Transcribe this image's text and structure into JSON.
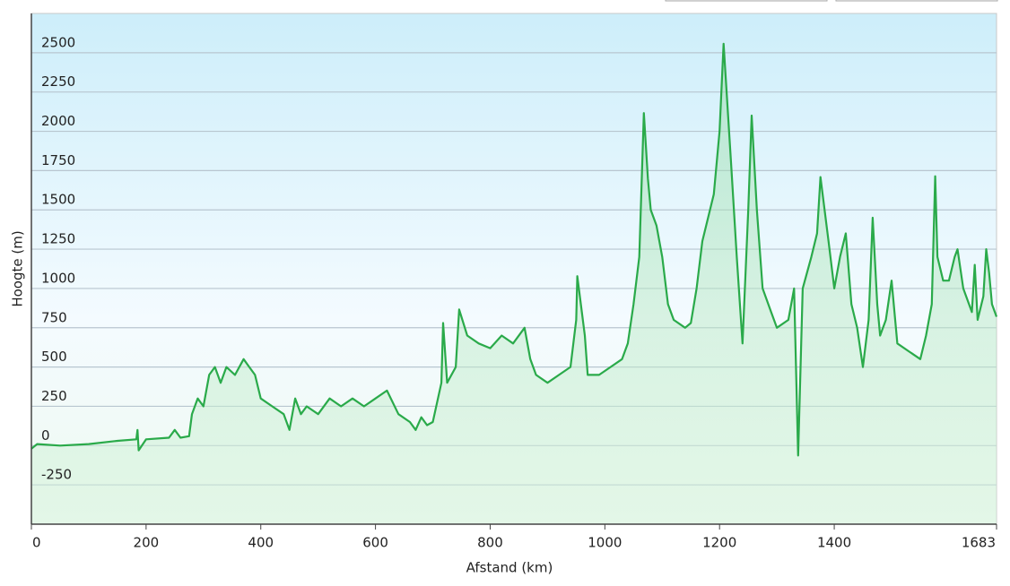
{
  "chart_data": {
    "type": "line",
    "x_label": "Afstand  (km)",
    "y_label": "Hoogte (m)",
    "color": "#2aaa4a",
    "grid": true,
    "xlim": [
      0,
      1683
    ],
    "xticks": [
      0,
      200,
      400,
      600,
      800,
      1000,
      1200,
      1400,
      1683
    ],
    "ylim": [
      -500,
      2750
    ],
    "yticks": [
      -250,
      0,
      250,
      500,
      750,
      1000,
      1250,
      1500,
      1750,
      2000,
      2250,
      2500
    ],
    "x": [
      0,
      10,
      50,
      100,
      150,
      183,
      185,
      187,
      200,
      240,
      250,
      260,
      275,
      280,
      290,
      300,
      310,
      320,
      330,
      340,
      355,
      370,
      380,
      390,
      400,
      420,
      440,
      450,
      460,
      470,
      480,
      500,
      520,
      540,
      560,
      580,
      600,
      620,
      640,
      660,
      670,
      680,
      690,
      700,
      715,
      718,
      725,
      740,
      746,
      760,
      780,
      800,
      820,
      840,
      860,
      870,
      880,
      900,
      920,
      940,
      950,
      952,
      965,
      970,
      990,
      1010,
      1030,
      1040,
      1050,
      1060,
      1068,
      1075,
      1080,
      1090,
      1100,
      1110,
      1120,
      1140,
      1150,
      1160,
      1170,
      1190,
      1200,
      1207,
      1220,
      1230,
      1240,
      1250,
      1256,
      1265,
      1275,
      1290,
      1300,
      1320,
      1330,
      1337,
      1345,
      1360,
      1370,
      1376,
      1390,
      1400,
      1410,
      1420,
      1430,
      1440,
      1450,
      1460,
      1467,
      1475,
      1480,
      1490,
      1500,
      1510,
      1530,
      1550,
      1560,
      1570,
      1576,
      1580,
      1590,
      1600,
      1610,
      1615,
      1625,
      1640,
      1645,
      1650,
      1660,
      1665,
      1670,
      1675,
      1683
    ],
    "values": [
      -20,
      10,
      0,
      10,
      30,
      40,
      100,
      -30,
      40,
      50,
      100,
      50,
      60,
      200,
      300,
      250,
      450,
      500,
      400,
      500,
      450,
      550,
      500,
      450,
      300,
      250,
      200,
      100,
      300,
      200,
      250,
      200,
      300,
      250,
      300,
      250,
      300,
      350,
      200,
      150,
      100,
      180,
      130,
      150,
      400,
      780,
      400,
      500,
      866,
      700,
      650,
      620,
      700,
      650,
      750,
      550,
      450,
      400,
      450,
      500,
      800,
      1078,
      700,
      450,
      450,
      500,
      550,
      650,
      900,
      1200,
      2116,
      1700,
      1500,
      1400,
      1200,
      900,
      800,
      750,
      780,
      1000,
      1300,
      1600,
      2000,
      2557,
      1800,
      1200,
      650,
      1500,
      2100,
      1500,
      1000,
      850,
      750,
      800,
      1000,
      -63,
      1000,
      1200,
      1350,
      1709,
      1300,
      1000,
      1200,
      1350,
      900,
      750,
      500,
      800,
      1450,
      900,
      700,
      800,
      1050,
      650,
      600,
      550,
      700,
      900,
      1714,
      1200,
      1050,
      1050,
      1200,
      1250,
      1000,
      850,
      1150,
      800,
      950,
      1250,
      1100,
      900,
      820
    ]
  }
}
